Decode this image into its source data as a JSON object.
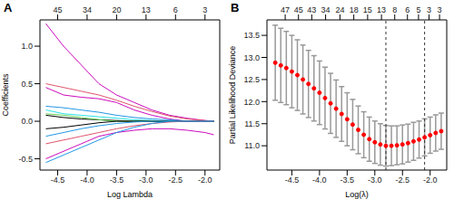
{
  "chart_data": [
    {
      "type": "line",
      "title": "A",
      "x_label": "Log Lambda",
      "y_label": "Coefficients",
      "x": [
        -4.7,
        -4.4,
        -4.1,
        -3.8,
        -3.5,
        -3.2,
        -2.9,
        -2.6,
        -2.3,
        -2.0,
        -1.85
      ],
      "xlim": [
        -4.8,
        -1.75
      ],
      "xticks": [
        -4.5,
        {
          "value": -4.0,
          "label": "-4.0"
        },
        -3.5,
        {
          "value": -3.0,
          "label": "-3.0"
        },
        -2.5,
        {
          "value": -2.0,
          "label": "-2.0"
        }
      ],
      "x2ticks": [
        {
          "value": -4.5,
          "label": "45"
        },
        {
          "value": -4.0,
          "label": "34"
        },
        {
          "value": -3.5,
          "label": "20"
        },
        {
          "value": -3.0,
          "label": "13"
        },
        {
          "value": -2.5,
          "label": "6"
        },
        {
          "value": -2.0,
          "label": "3"
        }
      ],
      "ylim": [
        -0.65,
        1.35
      ],
      "yticks": [
        -0.5,
        {
          "value": 0,
          "label": "0.0"
        },
        0.5,
        {
          "value": 1,
          "label": "1.0"
        }
      ],
      "series": [
        {
          "color": "#CD0BBC",
          "values": [
            1.3,
            1.0,
            0.75,
            0.5,
            0.35,
            0.25,
            0.15,
            0.08,
            0.04,
            0.01,
            0
          ]
        },
        {
          "color": "#DF536B",
          "values": [
            0.5,
            0.45,
            0.4,
            0.35,
            0.28,
            0.2,
            0.13,
            0.07,
            0.03,
            0.01,
            0
          ]
        },
        {
          "color": "#CD0BBC",
          "values": [
            0.45,
            0.35,
            0.32,
            0.3,
            0.25,
            0.15,
            0.08,
            0.03,
            0,
            0,
            0
          ]
        },
        {
          "color": "#2297E6",
          "values": [
            0.2,
            0.18,
            0.15,
            0.12,
            0.08,
            0.05,
            0.03,
            0.02,
            0,
            0,
            0
          ]
        },
        {
          "color": "#28E2E5",
          "values": [
            0.15,
            0.1,
            0.08,
            0.06,
            0.04,
            0.02,
            0.01,
            0,
            0,
            0,
            0
          ]
        },
        {
          "color": "#000000",
          "values": [
            0.08,
            0.05,
            0.03,
            0.02,
            0.01,
            0,
            0,
            0,
            0,
            0,
            0
          ]
        },
        {
          "color": "#61D04F",
          "values": [
            0.1,
            0.08,
            0.05,
            0.02,
            0,
            0,
            0,
            0,
            0,
            0,
            0
          ]
        },
        {
          "color": "#000000",
          "values": [
            -0.1,
            -0.08,
            -0.05,
            -0.02,
            0,
            0,
            0,
            0,
            0,
            0,
            0
          ]
        },
        {
          "color": "#2297E6",
          "values": [
            -0.2,
            -0.15,
            -0.1,
            -0.06,
            -0.03,
            -0.01,
            0,
            0,
            0,
            0,
            0
          ]
        },
        {
          "color": "#DF536B",
          "values": [
            -0.3,
            -0.25,
            -0.2,
            -0.15,
            -0.1,
            -0.06,
            -0.03,
            -0.01,
            0,
            0,
            0
          ]
        },
        {
          "color": "#CD0BBC",
          "values": [
            -0.5,
            -0.4,
            -0.3,
            -0.2,
            -0.15,
            -0.12,
            -0.1,
            -0.1,
            -0.12,
            -0.15,
            -0.18
          ]
        },
        {
          "color": "#2297E6",
          "values": [
            -0.55,
            -0.45,
            -0.35,
            -0.25,
            -0.15,
            -0.08,
            -0.03,
            0,
            0,
            0,
            0
          ]
        }
      ]
    },
    {
      "type": "scatter",
      "title": "B",
      "x_label": "Log(λ)",
      "y_label": "Partial Likelihood Deviance",
      "color": "#FF0000",
      "x": [
        -4.8,
        -4.7,
        -4.6,
        -4.5,
        -4.4,
        -4.3,
        -4.2,
        -4.1,
        -4.0,
        -3.9,
        -3.8,
        -3.7,
        -3.6,
        -3.5,
        -3.4,
        -3.3,
        -3.2,
        -3.1,
        -3.0,
        -2.9,
        -2.8,
        -2.7,
        -2.6,
        -2.5,
        -2.4,
        -2.3,
        -2.2,
        -2.1,
        -2.0,
        -1.9,
        -1.8
      ],
      "values": [
        12.88,
        12.82,
        12.76,
        12.68,
        12.6,
        12.5,
        12.4,
        12.3,
        12.2,
        12.08,
        11.96,
        11.84,
        11.72,
        11.6,
        11.48,
        11.36,
        11.25,
        11.15,
        11.08,
        11.03,
        11.0,
        11.0,
        11.01,
        11.03,
        11.06,
        11.1,
        11.14,
        11.19,
        11.24,
        11.29,
        11.33
      ],
      "errors": [
        0.85,
        0.84,
        0.83,
        0.82,
        0.8,
        0.78,
        0.76,
        0.74,
        0.72,
        0.7,
        0.68,
        0.65,
        0.62,
        0.6,
        0.57,
        0.54,
        0.52,
        0.5,
        0.48,
        0.47,
        0.46,
        0.45,
        0.44,
        0.44,
        0.43,
        0.43,
        0.42,
        0.42,
        0.41,
        0.41,
        0.41
      ],
      "vlines": [
        -2.8,
        -2.1
      ],
      "xlim": [
        -4.95,
        -1.7
      ],
      "xticks": [
        -4.5,
        {
          "value": -4.0,
          "label": "-4.0"
        },
        -3.5,
        {
          "value": -3.0,
          "label": "-3.0"
        },
        -2.5,
        {
          "value": -2.0,
          "label": "-2.0"
        }
      ],
      "x2ticks": [
        {
          "value": -4.62,
          "label": "47"
        },
        {
          "value": -4.38,
          "label": "45"
        },
        {
          "value": -4.14,
          "label": "43"
        },
        {
          "value": -3.89,
          "label": "34"
        },
        {
          "value": -3.63,
          "label": "24"
        },
        {
          "value": -3.38,
          "label": "18"
        },
        {
          "value": -3.13,
          "label": "15"
        },
        {
          "value": -2.88,
          "label": "13"
        },
        {
          "value": -2.64,
          "label": "8"
        },
        {
          "value": -2.41,
          "label": "6"
        },
        {
          "value": -2.21,
          "label": "5"
        },
        {
          "value": -2.02,
          "label": "3"
        },
        {
          "value": -1.83,
          "label": "3"
        }
      ],
      "ylim": [
        10.45,
        13.85
      ],
      "yticks": [
        {
          "value": 11,
          "label": "11.0"
        },
        11.5,
        {
          "value": 12,
          "label": "12.0"
        },
        12.5,
        {
          "value": 13,
          "label": "13.0"
        },
        13.5
      ]
    }
  ]
}
